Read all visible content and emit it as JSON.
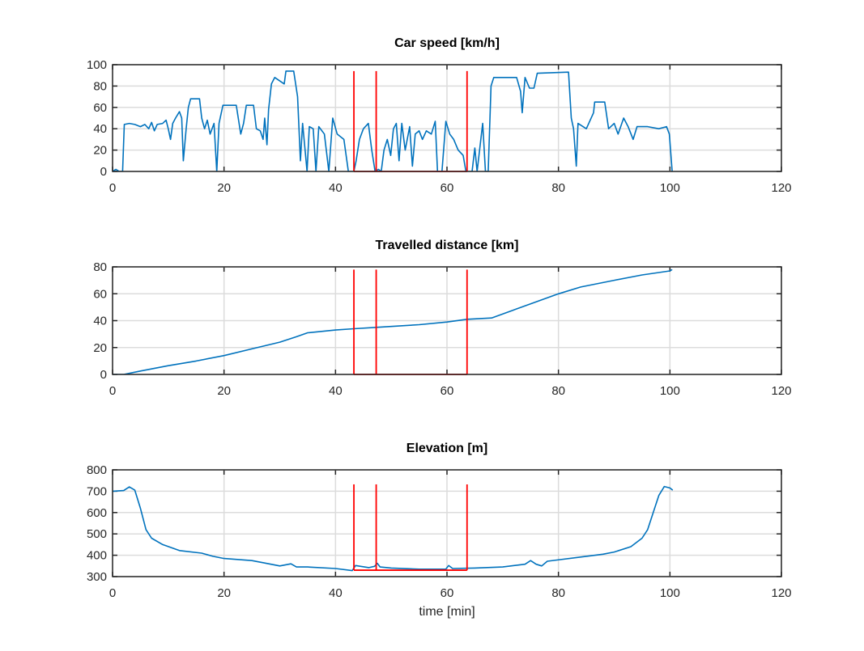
{
  "chart_data": [
    {
      "type": "line",
      "title": "Car speed [km/h]",
      "xlabel": "",
      "ylabel": "",
      "xlim": [
        0,
        120
      ],
      "ylim": [
        0,
        100
      ],
      "xticks": [
        "0",
        "20",
        "40",
        "60",
        "80",
        "100",
        "120"
      ],
      "yticks": [
        "0",
        "20",
        "40",
        "60",
        "80",
        "100"
      ],
      "grid": true,
      "series": [
        {
          "color": "#0072BD",
          "points": [
            [
              0,
              0
            ],
            [
              0.6,
              2
            ],
            [
              1.2,
              0
            ],
            [
              1.8,
              0
            ],
            [
              2.1,
              44
            ],
            [
              3,
              45
            ],
            [
              4,
              44
            ],
            [
              5,
              42
            ],
            [
              5.8,
              44
            ],
            [
              6.5,
              40
            ],
            [
              7,
              46
            ],
            [
              7.5,
              38
            ],
            [
              8,
              44
            ],
            [
              9,
              45
            ],
            [
              9.6,
              48
            ],
            [
              10,
              40
            ],
            [
              10.4,
              30
            ],
            [
              10.8,
              45
            ],
            [
              11.3,
              50
            ],
            [
              12,
              56
            ],
            [
              12.4,
              50
            ],
            [
              12.7,
              10
            ],
            [
              13.2,
              40
            ],
            [
              13.6,
              60
            ],
            [
              14,
              68
            ],
            [
              15.6,
              68
            ],
            [
              16,
              50
            ],
            [
              16.5,
              40
            ],
            [
              17,
              48
            ],
            [
              17.5,
              35
            ],
            [
              18.2,
              45
            ],
            [
              18.7,
              0
            ],
            [
              19.1,
              45
            ],
            [
              19.8,
              62
            ],
            [
              22.2,
              62
            ],
            [
              23,
              35
            ],
            [
              23.5,
              45
            ],
            [
              24,
              62
            ],
            [
              25.3,
              62
            ],
            [
              25.8,
              40
            ],
            [
              26.5,
              38
            ],
            [
              27,
              30
            ],
            [
              27.3,
              50
            ],
            [
              27.7,
              25
            ],
            [
              28,
              58
            ],
            [
              28.5,
              82
            ],
            [
              29.1,
              88
            ],
            [
              30.8,
              82
            ],
            [
              31.1,
              94
            ],
            [
              32.5,
              94
            ],
            [
              33.2,
              70
            ],
            [
              33.7,
              10
            ],
            [
              34.1,
              45
            ],
            [
              34.9,
              0
            ],
            [
              35.3,
              42
            ],
            [
              36,
              40
            ],
            [
              36.5,
              0
            ],
            [
              37,
              42
            ],
            [
              38,
              35
            ],
            [
              38.8,
              0
            ],
            [
              39.5,
              50
            ],
            [
              40.3,
              35
            ],
            [
              41.5,
              30
            ],
            [
              42.3,
              0
            ],
            [
              43.3,
              0
            ],
            [
              43.7,
              10
            ],
            [
              44.3,
              30
            ],
            [
              45,
              40
            ],
            [
              45.9,
              45
            ],
            [
              46.5,
              20
            ],
            [
              47.1,
              0
            ],
            [
              47.7,
              2
            ],
            [
              48.2,
              0
            ],
            [
              48.7,
              20
            ],
            [
              49.3,
              30
            ],
            [
              49.9,
              15
            ],
            [
              50.4,
              40
            ],
            [
              50.9,
              45
            ],
            [
              51.4,
              10
            ],
            [
              51.9,
              45
            ],
            [
              52.5,
              20
            ],
            [
              53.3,
              42
            ],
            [
              53.8,
              5
            ],
            [
              54.3,
              35
            ],
            [
              55,
              38
            ],
            [
              55.6,
              30
            ],
            [
              56.3,
              38
            ],
            [
              57.2,
              35
            ],
            [
              57.9,
              47
            ],
            [
              58.3,
              0
            ],
            [
              59.1,
              0
            ],
            [
              59.8,
              47
            ],
            [
              60.5,
              35
            ],
            [
              61.2,
              30
            ],
            [
              62,
              20
            ],
            [
              62.9,
              15
            ],
            [
              63.4,
              0
            ],
            [
              64.5,
              0
            ],
            [
              65,
              22
            ],
            [
              65.4,
              0
            ],
            [
              66.4,
              45
            ],
            [
              66.9,
              0
            ],
            [
              67.4,
              0
            ],
            [
              67.9,
              80
            ],
            [
              68.4,
              88
            ],
            [
              72.5,
              88
            ],
            [
              73.2,
              75
            ],
            [
              73.5,
              55
            ],
            [
              74,
              88
            ],
            [
              74.8,
              78
            ],
            [
              75.6,
              78
            ],
            [
              76.2,
              92
            ],
            [
              81.8,
              93
            ],
            [
              82.3,
              50
            ],
            [
              82.7,
              40
            ],
            [
              83.2,
              5
            ],
            [
              83.5,
              45
            ],
            [
              85,
              40
            ],
            [
              86.3,
              55
            ],
            [
              86.5,
              65
            ],
            [
              88.3,
              65
            ],
            [
              89,
              40
            ],
            [
              90,
              45
            ],
            [
              90.7,
              35
            ],
            [
              91.7,
              50
            ],
            [
              92.5,
              42
            ],
            [
              93.4,
              30
            ],
            [
              94.1,
              42
            ],
            [
              96,
              42
            ],
            [
              98,
              40
            ],
            [
              99.4,
              42
            ],
            [
              99.9,
              35
            ],
            [
              100.4,
              0
            ]
          ]
        }
      ],
      "markers": {
        "color": "#FF0000",
        "times": [
          43.3,
          47.3,
          63.6
        ],
        "low": 0,
        "high": 94
      }
    },
    {
      "type": "line",
      "title": "Travelled distance [km]",
      "xlabel": "",
      "ylabel": "",
      "xlim": [
        0,
        120
      ],
      "ylim": [
        0,
        80
      ],
      "xticks": [
        "0",
        "20",
        "40",
        "60",
        "80",
        "100",
        "120"
      ],
      "yticks": [
        "0",
        "20",
        "40",
        "60",
        "80"
      ],
      "grid": true,
      "series": [
        {
          "color": "#0072BD",
          "points": [
            [
              0,
              0
            ],
            [
              2,
              0
            ],
            [
              5,
              2.5
            ],
            [
              10,
              6.5
            ],
            [
              15,
              10
            ],
            [
              20,
              14
            ],
            [
              25,
              19
            ],
            [
              30,
              24
            ],
            [
              33,
              28
            ],
            [
              35,
              31
            ],
            [
              40,
              33
            ],
            [
              43.3,
              34
            ],
            [
              47.3,
              35
            ],
            [
              55,
              37
            ],
            [
              60,
              39
            ],
            [
              63.6,
              41
            ],
            [
              68,
              42
            ],
            [
              72,
              48
            ],
            [
              76,
              54
            ],
            [
              80,
              60
            ],
            [
              84,
              65
            ],
            [
              90,
              70
            ],
            [
              95,
              74
            ],
            [
              100,
              77
            ],
            [
              100.4,
              78
            ]
          ]
        }
      ],
      "markers": {
        "color": "#FF0000",
        "times": [
          43.3,
          47.3,
          63.6
        ],
        "low": 0,
        "high": 78
      }
    },
    {
      "type": "line",
      "title": "Elevation [m]",
      "xlabel": "time [min]",
      "ylabel": "",
      "xlim": [
        0,
        120
      ],
      "ylim": [
        300,
        800
      ],
      "xticks": [
        "0",
        "20",
        "40",
        "60",
        "80",
        "100",
        "120"
      ],
      "yticks": [
        "300",
        "400",
        "500",
        "600",
        "700",
        "800"
      ],
      "grid": true,
      "series": [
        {
          "color": "#0072BD",
          "points": [
            [
              0,
              700
            ],
            [
              2,
              703
            ],
            [
              3,
              720
            ],
            [
              4,
              705
            ],
            [
              5,
              620
            ],
            [
              6,
              520
            ],
            [
              7,
              480
            ],
            [
              9,
              450
            ],
            [
              12,
              422
            ],
            [
              16,
              410
            ],
            [
              18,
              395
            ],
            [
              20,
              385
            ],
            [
              25,
              375
            ],
            [
              27,
              365
            ],
            [
              30,
              350
            ],
            [
              32,
              360
            ],
            [
              33,
              345
            ],
            [
              35,
              345
            ],
            [
              40,
              338
            ],
            [
              43,
              328
            ],
            [
              43.6,
              352
            ],
            [
              46,
              342
            ],
            [
              47,
              348
            ],
            [
              47.5,
              362
            ],
            [
              48,
              345
            ],
            [
              50,
              340
            ],
            [
              55,
              335
            ],
            [
              59.8,
              335
            ],
            [
              60.3,
              352
            ],
            [
              61,
              338
            ],
            [
              65,
              340
            ],
            [
              70,
              345
            ],
            [
              74,
              358
            ],
            [
              75,
              375
            ],
            [
              76,
              358
            ],
            [
              77,
              350
            ],
            [
              78,
              372
            ],
            [
              85,
              395
            ],
            [
              88,
              405
            ],
            [
              90,
              415
            ],
            [
              93,
              440
            ],
            [
              95,
              480
            ],
            [
              96,
              520
            ],
            [
              97,
              600
            ],
            [
              98,
              680
            ],
            [
              99,
              722
            ],
            [
              100,
              715
            ],
            [
              100.5,
              705
            ]
          ]
        }
      ],
      "markers": {
        "color": "#FF0000",
        "times": [
          43.3,
          47.3,
          63.6
        ],
        "low": 330,
        "high": 732
      }
    }
  ]
}
